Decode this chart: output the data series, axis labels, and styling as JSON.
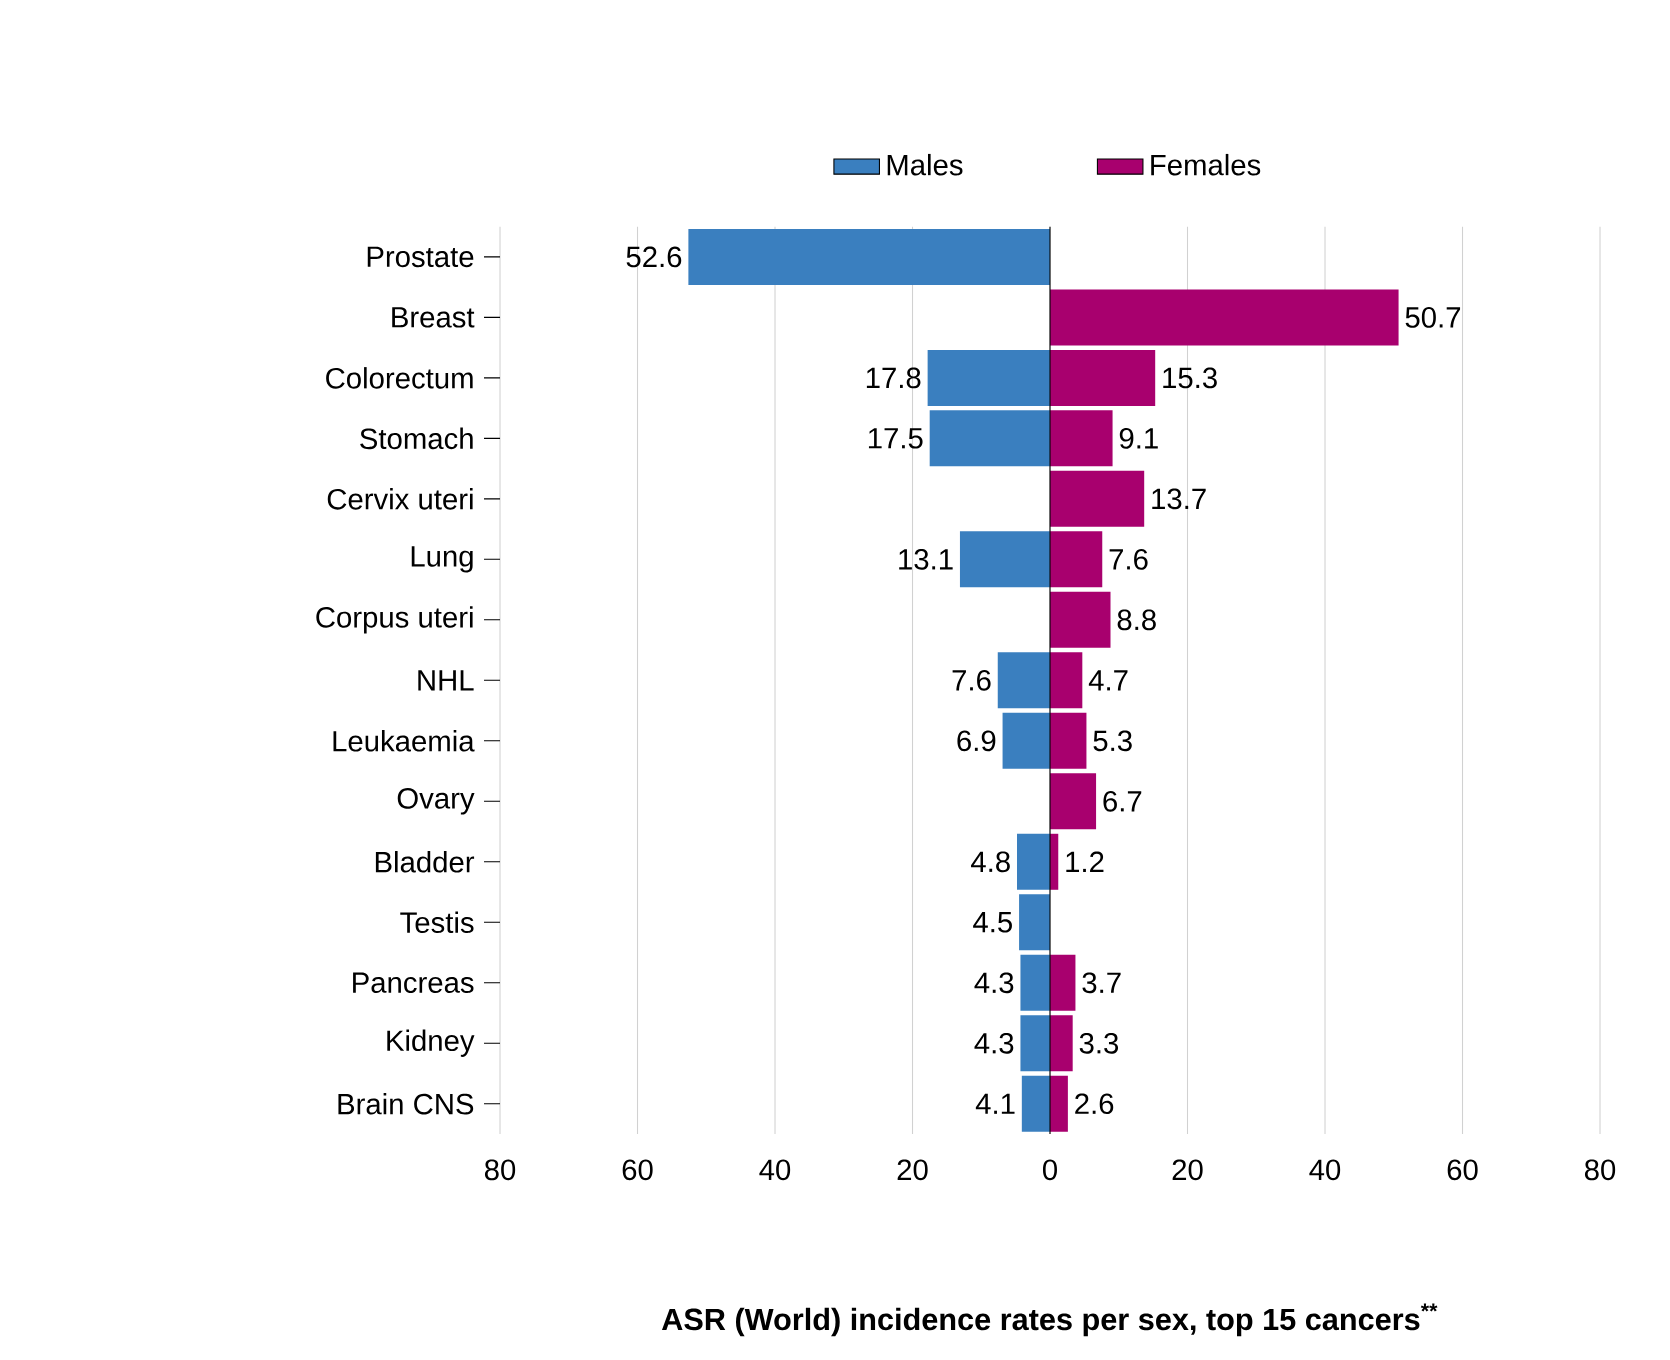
{
  "chart_data": {
    "type": "bar",
    "orientation": "horizontal",
    "title": "ASR (World) incidence rates per sex, top 15 cancers$^{**}$",
    "categories": [
      "Prostate",
      "Breast",
      "Colorectum",
      "Stomach",
      "Cervix uteri",
      "Lung",
      "Corpus uteri",
      "NHL",
      "Leukaemia",
      "Ovary",
      "Bladder",
      "Testis",
      "Pancreas",
      "Kidney",
      "Brain CNS"
    ],
    "series": [
      {
        "name": "Males",
        "color": "#3a7fbf",
        "values": [
          52.6,
          null,
          17.8,
          17.5,
          null,
          13.1,
          null,
          7.6,
          6.9,
          null,
          4.8,
          4.5,
          4.3,
          4.3,
          4.1
        ],
        "base": [
          -52.6,
          null,
          -17.8,
          -17.5,
          null,
          -13.1,
          null,
          -7.6,
          -6.9,
          null,
          -4.8,
          -4.5,
          -4.3,
          -4.3,
          -4.1
        ],
        "value_labels": [
          "52.6",
          null,
          "17.8",
          "17.5",
          null,
          "13.1",
          null,
          "7.6",
          "6.9",
          null,
          "4.8",
          "4.5",
          "4.3",
          "4.3",
          "4.1"
        ]
      },
      {
        "name": "Females",
        "color": "#a8006e",
        "values": [
          null,
          50.7,
          15.3,
          9.1,
          13.7,
          7.6,
          8.8,
          4.7,
          5.3,
          6.7,
          1.2,
          null,
          3.7,
          3.3,
          2.6
        ],
        "value_labels": [
          null,
          "50.7",
          "15.3",
          "9.1",
          "13.7",
          "7.6",
          "8.8",
          "4.7",
          "5.3",
          "6.7",
          "1.2",
          null,
          "3.7",
          "3.3",
          "2.6"
        ]
      }
    ],
    "xlim": [
      -80,
      80
    ],
    "xticks": [
      {
        "value": -80,
        "label": "80"
      },
      {
        "value": -60,
        "label": "60"
      },
      {
        "value": -40,
        "label": "40"
      },
      {
        "value": -20,
        "label": "20"
      },
      0,
      20,
      40,
      60,
      80
    ],
    "grid": "x",
    "legend": "top",
    "ref_lines": [
      {
        "axis": "x",
        "value": 0,
        "color": "#000000"
      }
    ]
  }
}
